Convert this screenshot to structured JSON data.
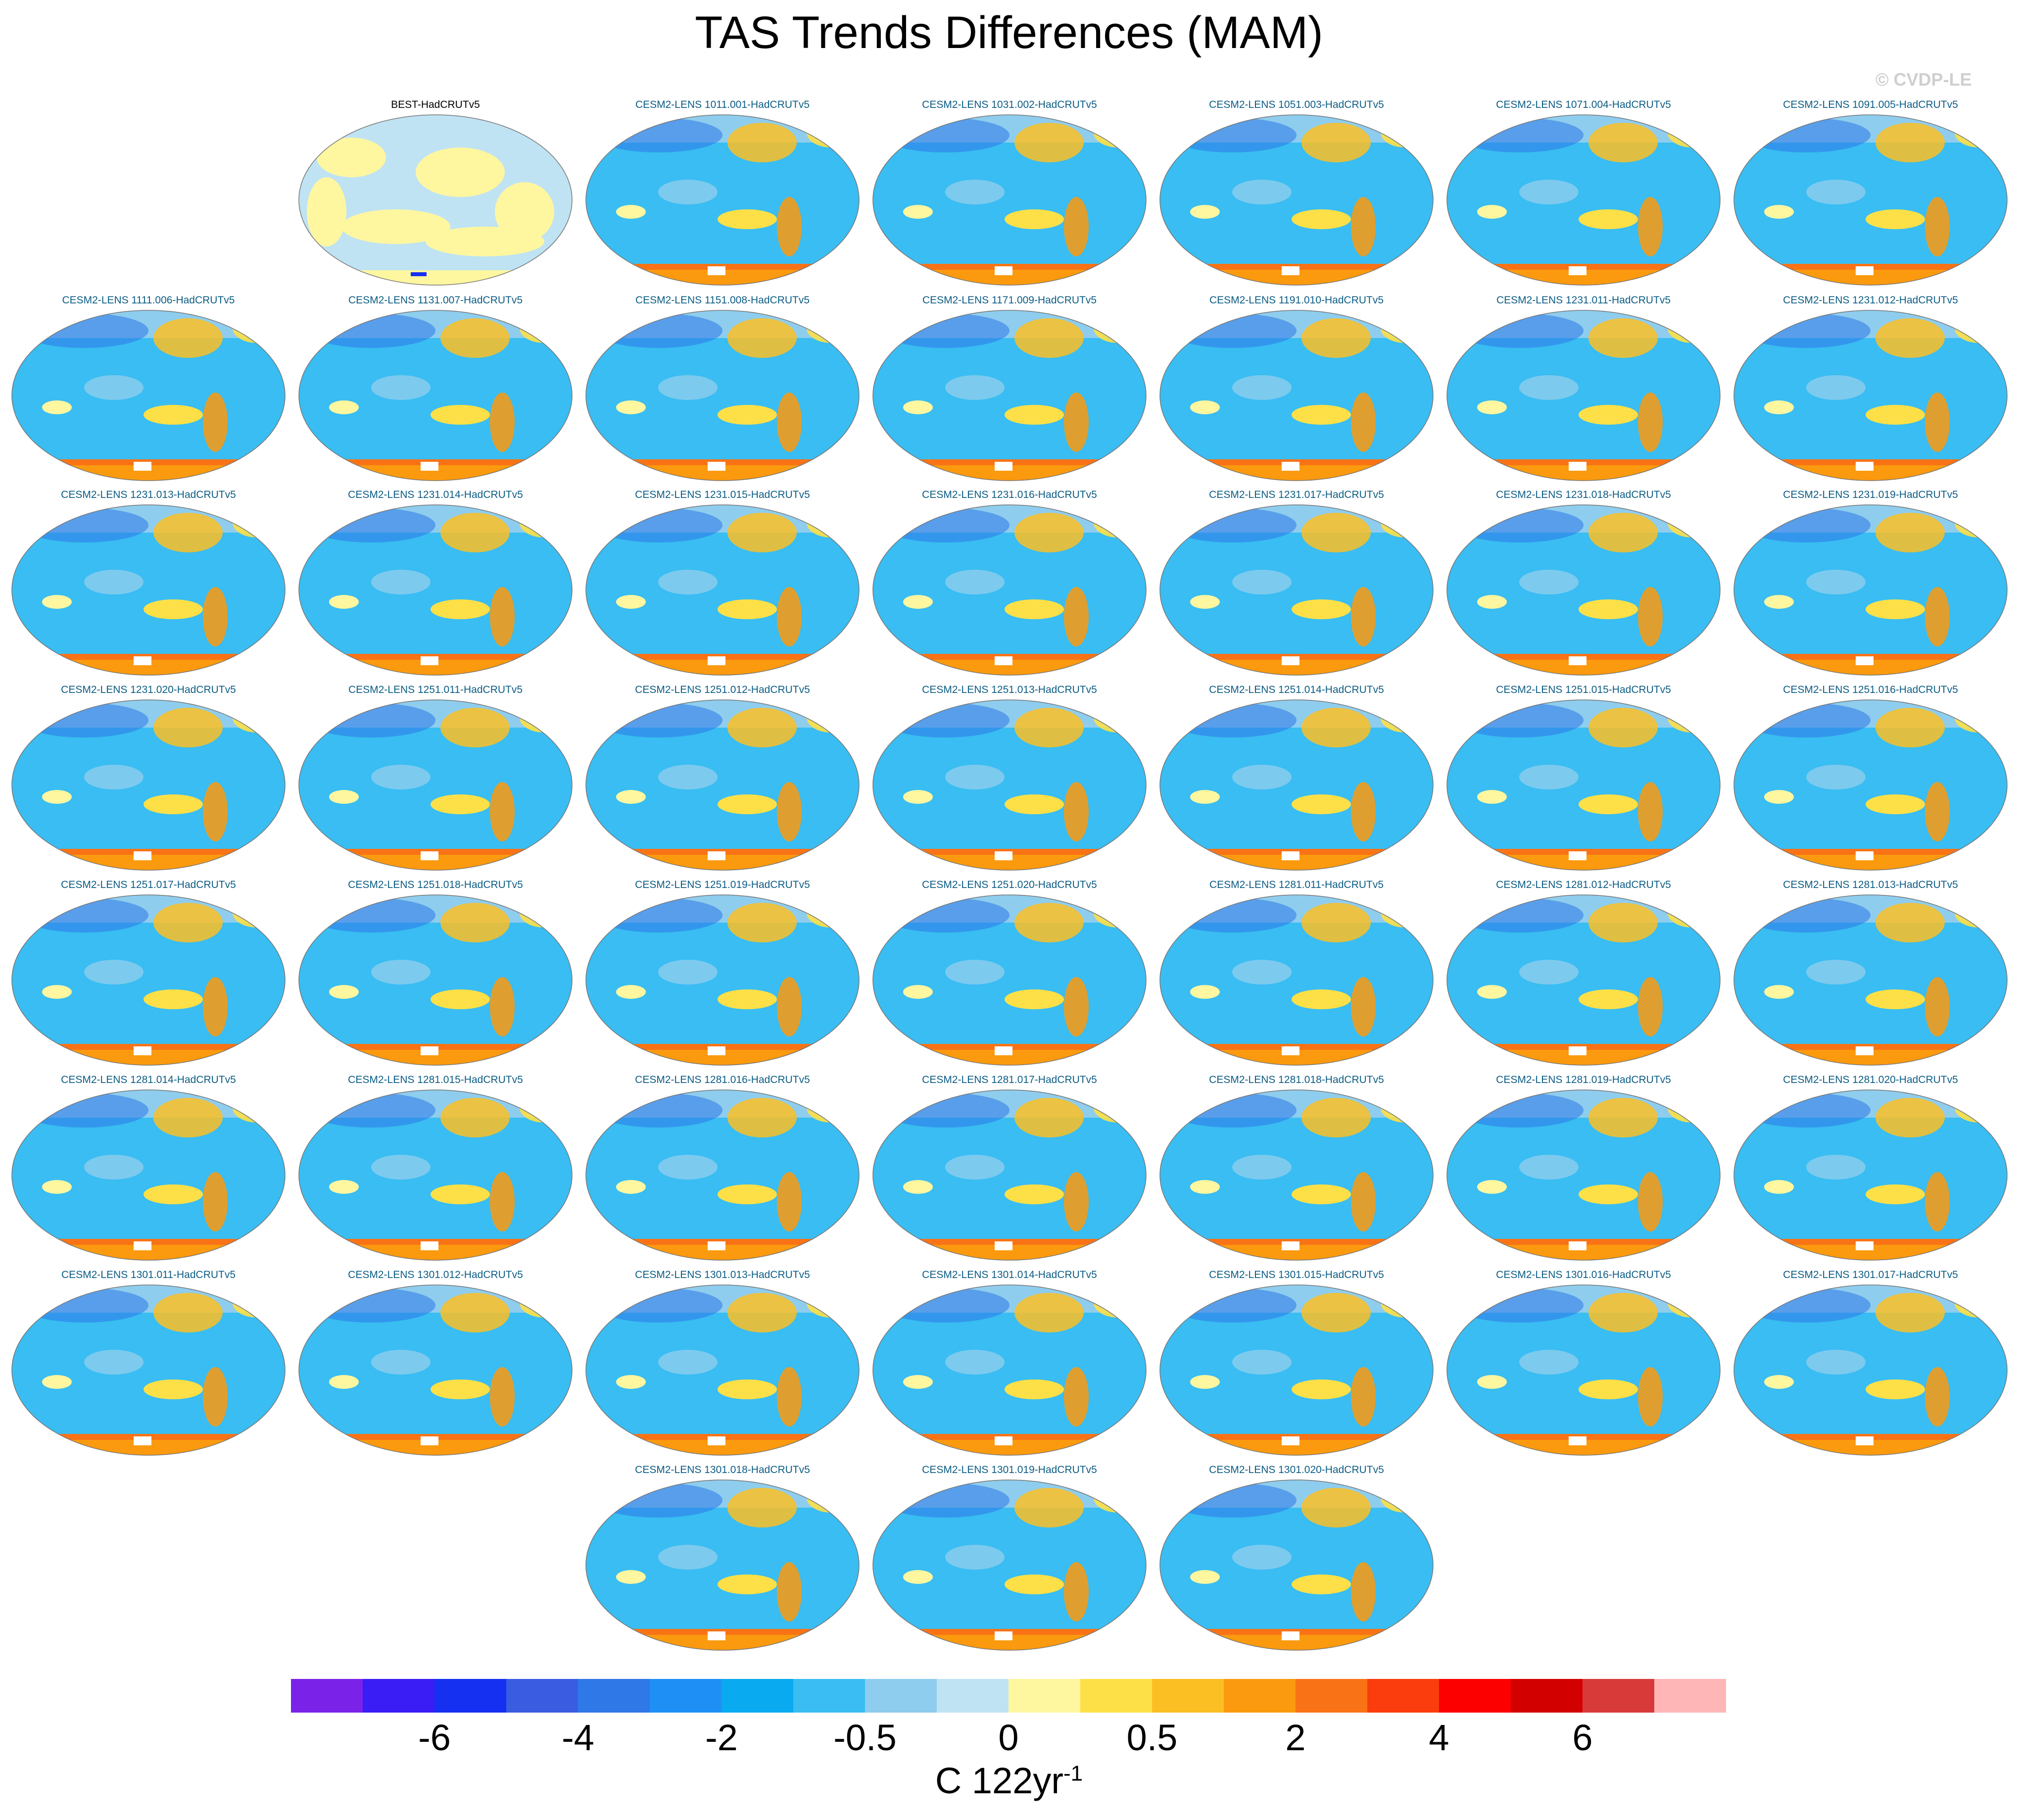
{
  "title": "TAS Trends Differences (MAM)",
  "copyright": "© CVDP-LE",
  "panels": [
    {
      "label": "BEST-HadCRUTv5",
      "observational": true
    },
    {
      "label": "CESM2-LENS 1011.001-HadCRUTv5"
    },
    {
      "label": "CESM2-LENS 1031.002-HadCRUTv5"
    },
    {
      "label": "CESM2-LENS 1051.003-HadCRUTv5"
    },
    {
      "label": "CESM2-LENS 1071.004-HadCRUTv5"
    },
    {
      "label": "CESM2-LENS 1091.005-HadCRUTv5"
    },
    {
      "label": "CESM2-LENS 1111.006-HadCRUTv5"
    },
    {
      "label": "CESM2-LENS 1131.007-HadCRUTv5"
    },
    {
      "label": "CESM2-LENS 1151.008-HadCRUTv5"
    },
    {
      "label": "CESM2-LENS 1171.009-HadCRUTv5"
    },
    {
      "label": "CESM2-LENS 1191.010-HadCRUTv5"
    },
    {
      "label": "CESM2-LENS 1231.011-HadCRUTv5"
    },
    {
      "label": "CESM2-LENS 1231.012-HadCRUTv5"
    },
    {
      "label": "CESM2-LENS 1231.013-HadCRUTv5"
    },
    {
      "label": "CESM2-LENS 1231.014-HadCRUTv5"
    },
    {
      "label": "CESM2-LENS 1231.015-HadCRUTv5"
    },
    {
      "label": "CESM2-LENS 1231.016-HadCRUTv5"
    },
    {
      "label": "CESM2-LENS 1231.017-HadCRUTv5"
    },
    {
      "label": "CESM2-LENS 1231.018-HadCRUTv5"
    },
    {
      "label": "CESM2-LENS 1231.019-HadCRUTv5"
    },
    {
      "label": "CESM2-LENS 1231.020-HadCRUTv5"
    },
    {
      "label": "CESM2-LENS 1251.011-HadCRUTv5"
    },
    {
      "label": "CESM2-LENS 1251.012-HadCRUTv5"
    },
    {
      "label": "CESM2-LENS 1251.013-HadCRUTv5"
    },
    {
      "label": "CESM2-LENS 1251.014-HadCRUTv5"
    },
    {
      "label": "CESM2-LENS 1251.015-HadCRUTv5"
    },
    {
      "label": "CESM2-LENS 1251.016-HadCRUTv5"
    },
    {
      "label": "CESM2-LENS 1251.017-HadCRUTv5"
    },
    {
      "label": "CESM2-LENS 1251.018-HadCRUTv5"
    },
    {
      "label": "CESM2-LENS 1251.019-HadCRUTv5"
    },
    {
      "label": "CESM2-LENS 1251.020-HadCRUTv5"
    },
    {
      "label": "CESM2-LENS 1281.011-HadCRUTv5"
    },
    {
      "label": "CESM2-LENS 1281.012-HadCRUTv5"
    },
    {
      "label": "CESM2-LENS 1281.013-HadCRUTv5"
    },
    {
      "label": "CESM2-LENS 1281.014-HadCRUTv5"
    },
    {
      "label": "CESM2-LENS 1281.015-HadCRUTv5"
    },
    {
      "label": "CESM2-LENS 1281.016-HadCRUTv5"
    },
    {
      "label": "CESM2-LENS 1281.017-HadCRUTv5"
    },
    {
      "label": "CESM2-LENS 1281.018-HadCRUTv5"
    },
    {
      "label": "CESM2-LENS 1281.019-HadCRUTv5"
    },
    {
      "label": "CESM2-LENS 1281.020-HadCRUTv5"
    },
    {
      "label": "CESM2-LENS 1301.011-HadCRUTv5"
    },
    {
      "label": "CESM2-LENS 1301.012-HadCRUTv5"
    },
    {
      "label": "CESM2-LENS 1301.013-HadCRUTv5"
    },
    {
      "label": "CESM2-LENS 1301.014-HadCRUTv5"
    },
    {
      "label": "CESM2-LENS 1301.015-HadCRUTv5"
    },
    {
      "label": "CESM2-LENS 1301.016-HadCRUTv5"
    },
    {
      "label": "CESM2-LENS 1301.017-HadCRUTv5"
    },
    {
      "label": "CESM2-LENS 1301.018-HadCRUTv5"
    },
    {
      "label": "CESM2-LENS 1301.019-HadCRUTv5"
    },
    {
      "label": "CESM2-LENS 1301.020-HadCRUTv5"
    }
  ],
  "colorbar": {
    "colors": [
      "#7b22e8",
      "#3a1cf5",
      "#1530f0",
      "#3a5ce0",
      "#2e78e8",
      "#1e90f5",
      "#0aaaf0",
      "#39bdf2",
      "#8ecdee",
      "#bfe3f3",
      "#fff6a0",
      "#fde047",
      "#fbbf24",
      "#fb9a0e",
      "#f97316",
      "#fb3c0c",
      "#fc0000",
      "#d30000",
      "#d83a3a",
      "#ffb6b6"
    ],
    "labels": [
      {
        "text": "-6",
        "boundary": 2
      },
      {
        "text": "-4",
        "boundary": 4
      },
      {
        "text": "-2",
        "boundary": 6
      },
      {
        "text": "-0.5",
        "boundary": 8
      },
      {
        "text": "0",
        "boundary": 10
      },
      {
        "text": "0.5",
        "boundary": 12
      },
      {
        "text": "2",
        "boundary": 14
      },
      {
        "text": "4",
        "boundary": 16
      },
      {
        "text": "6",
        "boundary": 18
      }
    ],
    "units": "C 122yr",
    "units_exponent": "-1"
  }
}
